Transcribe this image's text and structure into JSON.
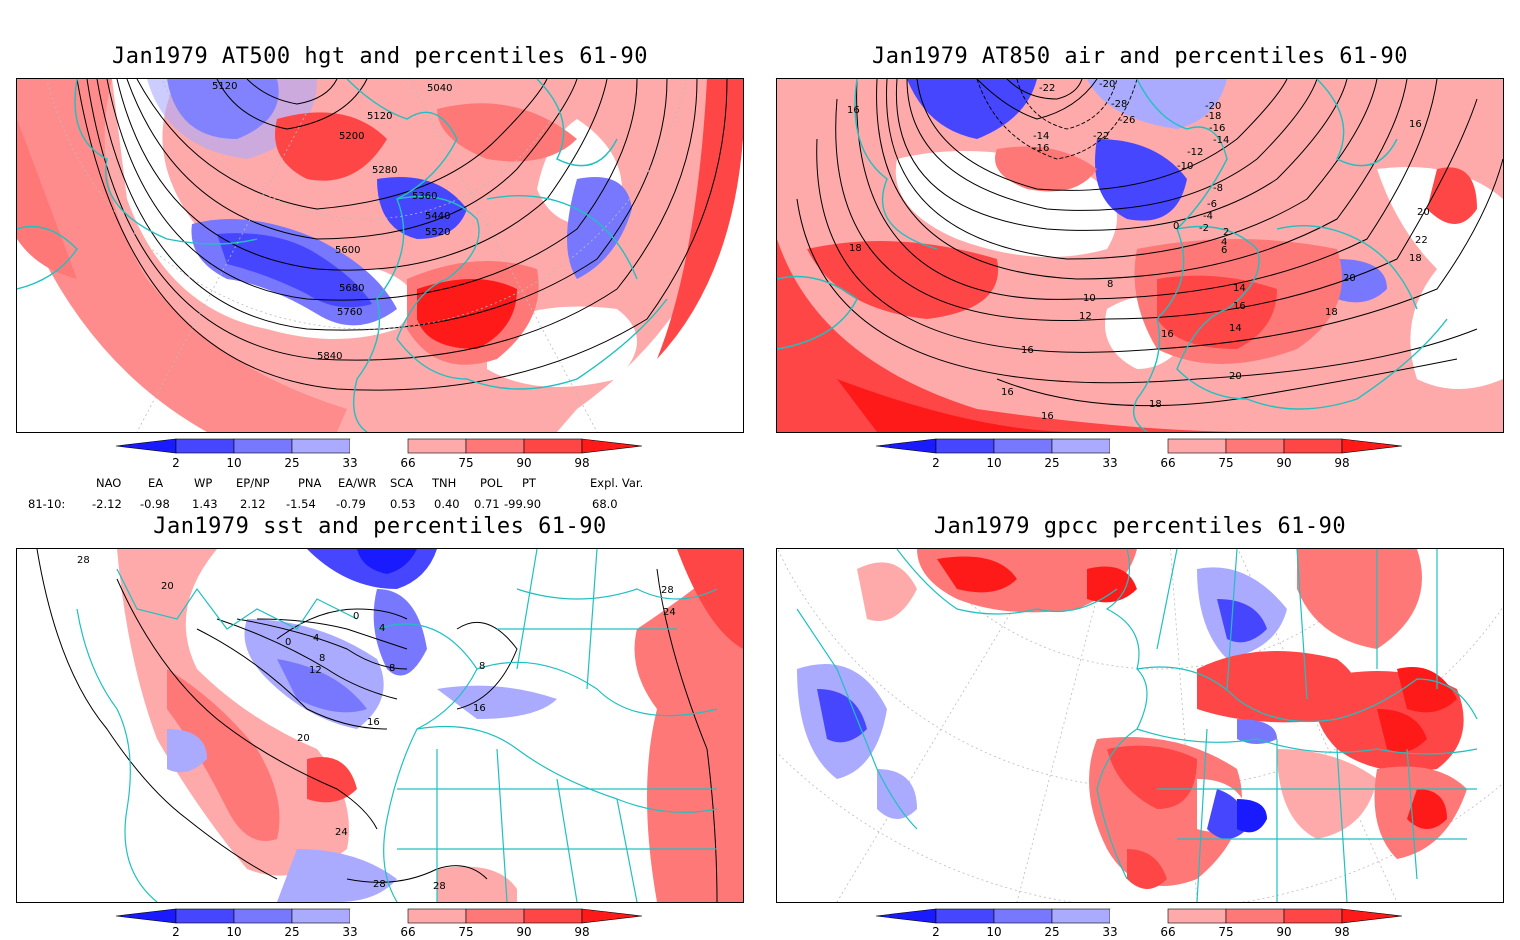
{
  "panels": [
    {
      "title": "Jan1979 AT500 hgt and percentiles 61-90",
      "contour_labels": [
        "5040",
        "5120",
        "5120",
        "5200",
        "5280",
        "5360",
        "5440",
        "5520",
        "5600",
        "5680",
        "5760",
        "5840"
      ]
    },
    {
      "title": "Jan1979 AT850 air and percentiles 61-90",
      "contour_labels": [
        "16",
        "-22",
        "-20",
        "-28",
        "-26",
        "-20",
        "-18",
        "-16",
        "-14",
        "-12",
        "-10",
        "-8",
        "-6",
        "-4",
        "-2",
        "0",
        "2",
        "4",
        "6",
        "8",
        "10",
        "12",
        "14",
        "16",
        "14",
        "16",
        "18",
        "20",
        "22",
        "18",
        "20",
        "16",
        "18",
        "16",
        "20",
        "18",
        "16",
        "16",
        "-14",
        "-16",
        "-22"
      ]
    },
    {
      "title": "Jan1979 sst and percentiles 61-90",
      "contour_labels": [
        "28",
        "20",
        "0",
        "4",
        "8",
        "12",
        "16",
        "20",
        "24",
        "28",
        "28",
        "0",
        "4",
        "8",
        "16",
        "24",
        "28",
        "8"
      ]
    },
    {
      "title": "Jan1979 gpcc percentiles 61-90",
      "contour_labels": []
    }
  ],
  "colorbar": {
    "ticks": [
      "2",
      "10",
      "25",
      "33",
      "66",
      "75",
      "90",
      "98"
    ],
    "colors": [
      "#1a1aff",
      "#4646ff",
      "#7878ff",
      "#aaaaff",
      "#ffffff",
      "#ffaaaa",
      "#ff7878",
      "#ff4646",
      "#ff1a1a"
    ]
  },
  "indices": {
    "headers": [
      "NAO",
      "EA",
      "WP",
      "EP/NP",
      "PNA",
      "EA/WR",
      "SCA",
      "TNH",
      "POL",
      "PT",
      "Expl. Var."
    ],
    "row_label": "81-10:",
    "values": [
      "-2.12",
      "-0.98",
      "1.43",
      "2.12",
      "-1.54",
      "-0.79",
      "0.53",
      "0.40",
      "0.71",
      "-99.90",
      "68.0"
    ]
  },
  "colors": {
    "land_outline": "#20c0c0",
    "contour": "#000000",
    "graticule": "#999999"
  }
}
